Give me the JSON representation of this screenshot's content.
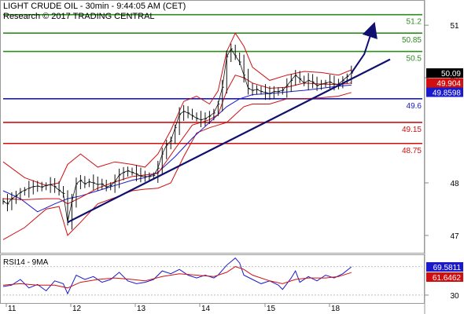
{
  "chart_data": [
    {
      "type": "candlestick",
      "title": "LIGHT CRUDE OIL - 30min - 9:44:05 AM (CET)",
      "subtitle": "Research © 2017 TRADING CENTRAL",
      "x_tick_labels": [
        "11",
        "12",
        "13",
        "14",
        "15",
        "18"
      ],
      "y_tick_labels": [
        51,
        50,
        48,
        47
      ],
      "ylim": [
        46.7,
        51.45
      ],
      "price_levels": [
        {
          "value": 51.2,
          "label": "51.2",
          "color": "#2e8b1e"
        },
        {
          "value": 50.85,
          "label": "50.85",
          "color": "#2e8b1e"
        },
        {
          "value": 50.5,
          "label": "50.5",
          "color": "#2e8b1e"
        },
        {
          "value": 49.6,
          "label": "49.6",
          "color": "#1a1acc"
        },
        {
          "value": 49.15,
          "label": "49.15",
          "color": "#d01010"
        },
        {
          "value": 48.75,
          "label": "48.75",
          "color": "#d01010"
        }
      ],
      "price_badges": [
        {
          "label": "50.09",
          "color": "#000000",
          "value": 50.09
        },
        {
          "label": "49.904",
          "color": "#d01010",
          "value": 49.904
        },
        {
          "label": "49.8598",
          "color": "#1a1acc",
          "value": 49.8598
        }
      ],
      "price_path": [
        [
          0,
          47.65
        ],
        [
          2,
          47.6
        ],
        [
          4,
          47.7
        ],
        [
          6,
          47.75
        ],
        [
          8,
          47.82
        ],
        [
          10,
          47.86
        ],
        [
          12,
          47.9
        ],
        [
          14,
          47.93
        ],
        [
          16,
          47.94
        ],
        [
          18,
          47.92
        ],
        [
          20,
          47.95
        ],
        [
          22,
          47.97
        ],
        [
          24,
          47.93
        ],
        [
          26,
          47.86
        ],
        [
          28,
          47.8
        ],
        [
          30,
          47.25
        ],
        [
          32,
          47.65
        ],
        [
          34,
          47.98
        ],
        [
          36,
          48.05
        ],
        [
          38,
          47.98
        ],
        [
          40,
          48.02
        ],
        [
          42,
          48.0
        ],
        [
          44,
          47.97
        ],
        [
          46,
          47.98
        ],
        [
          48,
          47.92
        ],
        [
          50,
          47.95
        ],
        [
          52,
          48.02
        ],
        [
          54,
          48.15
        ],
        [
          56,
          48.2
        ],
        [
          58,
          48.23
        ],
        [
          60,
          48.2
        ],
        [
          62,
          48.17
        ],
        [
          64,
          48.13
        ],
        [
          66,
          48.12
        ],
        [
          68,
          48.12
        ],
        [
          70,
          48.14
        ],
        [
          72,
          48.28
        ],
        [
          74,
          48.55
        ],
        [
          76,
          48.72
        ],
        [
          78,
          48.8
        ],
        [
          80,
          49.05
        ],
        [
          82,
          49.3
        ],
        [
          84,
          49.36
        ],
        [
          86,
          49.33
        ],
        [
          88,
          49.28
        ],
        [
          90,
          49.23
        ],
        [
          92,
          49.2
        ],
        [
          94,
          49.22
        ],
        [
          96,
          49.27
        ],
        [
          98,
          49.33
        ],
        [
          100,
          49.5
        ],
        [
          102,
          49.82
        ],
        [
          104,
          50.4
        ],
        [
          106,
          50.55
        ],
        [
          108,
          50.42
        ],
        [
          110,
          50.3
        ],
        [
          112,
          50.05
        ],
        [
          114,
          49.8
        ],
        [
          116,
          49.76
        ],
        [
          118,
          49.78
        ],
        [
          120,
          49.74
        ],
        [
          122,
          49.72
        ],
        [
          124,
          49.7
        ],
        [
          126,
          49.74
        ],
        [
          128,
          49.74
        ],
        [
          130,
          49.76
        ],
        [
          132,
          49.85
        ],
        [
          134,
          49.95
        ],
        [
          136,
          50.05
        ],
        [
          138,
          49.98
        ],
        [
          140,
          49.9
        ],
        [
          142,
          49.95
        ],
        [
          144,
          49.92
        ],
        [
          146,
          49.85
        ],
        [
          148,
          49.88
        ],
        [
          150,
          49.9
        ],
        [
          152,
          49.92
        ],
        [
          154,
          49.88
        ],
        [
          156,
          49.88
        ],
        [
          158,
          49.95
        ],
        [
          160,
          50.02
        ],
        [
          162,
          50.09
        ]
      ],
      "bollinger_upper": [
        [
          0,
          48.4
        ],
        [
          10,
          48.1
        ],
        [
          20,
          47.95
        ],
        [
          26,
          48.0
        ],
        [
          30,
          48.35
        ],
        [
          36,
          48.55
        ],
        [
          44,
          48.3
        ],
        [
          52,
          48.4
        ],
        [
          60,
          48.35
        ],
        [
          66,
          48.3
        ],
        [
          72,
          48.55
        ],
        [
          78,
          49.0
        ],
        [
          84,
          49.55
        ],
        [
          90,
          49.65
        ],
        [
          96,
          49.5
        ],
        [
          100,
          49.75
        ],
        [
          104,
          50.5
        ],
        [
          108,
          50.85
        ],
        [
          112,
          50.6
        ],
        [
          116,
          50.2
        ],
        [
          124,
          49.95
        ],
        [
          132,
          50.05
        ],
        [
          140,
          50.12
        ],
        [
          148,
          50.1
        ],
        [
          156,
          50.05
        ],
        [
          162,
          50.15
        ]
      ],
      "bollinger_lower": [
        [
          0,
          46.92
        ],
        [
          10,
          47.15
        ],
        [
          20,
          47.5
        ],
        [
          26,
          47.55
        ],
        [
          30,
          47.0
        ],
        [
          36,
          47.25
        ],
        [
          44,
          47.6
        ],
        [
          52,
          47.72
        ],
        [
          60,
          47.85
        ],
        [
          66,
          47.88
        ],
        [
          72,
          47.9
        ],
        [
          78,
          48.0
        ],
        [
          84,
          48.5
        ],
        [
          90,
          48.95
        ],
        [
          96,
          49.05
        ],
        [
          100,
          49.1
        ],
        [
          104,
          49.15
        ],
        [
          108,
          49.3
        ],
        [
          112,
          49.45
        ],
        [
          116,
          49.5
        ],
        [
          124,
          49.5
        ],
        [
          132,
          49.6
        ],
        [
          140,
          49.6
        ],
        [
          148,
          49.62
        ],
        [
          156,
          49.65
        ],
        [
          162,
          49.72
        ]
      ],
      "moving_average_blue": [
        [
          0,
          47.85
        ],
        [
          8,
          47.7
        ],
        [
          16,
          47.45
        ],
        [
          24,
          47.6
        ],
        [
          30,
          47.7
        ],
        [
          36,
          47.75
        ],
        [
          44,
          47.85
        ],
        [
          52,
          47.95
        ],
        [
          60,
          48.05
        ],
        [
          66,
          48.1
        ],
        [
          72,
          48.2
        ],
        [
          80,
          48.5
        ],
        [
          88,
          48.85
        ],
        [
          96,
          49.15
        ],
        [
          104,
          49.45
        ],
        [
          110,
          49.6
        ],
        [
          116,
          49.68
        ],
        [
          124,
          49.7
        ],
        [
          132,
          49.73
        ],
        [
          140,
          49.76
        ],
        [
          148,
          49.8
        ],
        [
          156,
          49.84
        ],
        [
          162,
          49.86
        ]
      ],
      "moving_average_red": [
        [
          0,
          47.7
        ],
        [
          10,
          47.68
        ],
        [
          20,
          47.7
        ],
        [
          26,
          47.7
        ],
        [
          30,
          47.6
        ],
        [
          36,
          47.72
        ],
        [
          44,
          47.9
        ],
        [
          52,
          48.02
        ],
        [
          60,
          48.12
        ],
        [
          66,
          48.15
        ],
        [
          72,
          48.18
        ],
        [
          80,
          48.65
        ],
        [
          88,
          49.1
        ],
        [
          96,
          49.2
        ],
        [
          100,
          49.3
        ],
        [
          104,
          49.75
        ],
        [
          108,
          50.05
        ],
        [
          112,
          50.0
        ],
        [
          116,
          49.9
        ],
        [
          124,
          49.8
        ],
        [
          132,
          49.82
        ],
        [
          140,
          49.9
        ],
        [
          148,
          49.88
        ],
        [
          156,
          49.87
        ],
        [
          162,
          49.9
        ]
      ],
      "trend_line": {
        "from": [
          30,
          47.25
        ],
        "to": [
          180,
          50.35
        ]
      },
      "projection_arrow": {
        "points": [
          [
            162,
            50.09
          ],
          [
            168,
            50.45
          ],
          [
            172,
            50.95
          ]
        ]
      }
    },
    {
      "type": "line",
      "title": "RSI14 - 9MA",
      "y_tick_labels": [
        30
      ],
      "ylim": [
        20,
        85
      ],
      "badges": [
        {
          "label": "69.5811",
          "color": "#1a1acc",
          "value": 69.5811
        },
        {
          "label": "61.6462",
          "color": "#d01010",
          "value": 61.6462
        }
      ],
      "rsi": [
        [
          0,
          42
        ],
        [
          4,
          44
        ],
        [
          8,
          52
        ],
        [
          12,
          40
        ],
        [
          16,
          45
        ],
        [
          20,
          36
        ],
        [
          24,
          50
        ],
        [
          28,
          46
        ],
        [
          30,
          32
        ],
        [
          34,
          58
        ],
        [
          38,
          52
        ],
        [
          42,
          56
        ],
        [
          46,
          48
        ],
        [
          50,
          52
        ],
        [
          54,
          62
        ],
        [
          58,
          50
        ],
        [
          62,
          46
        ],
        [
          66,
          48
        ],
        [
          70,
          52
        ],
        [
          74,
          64
        ],
        [
          78,
          60
        ],
        [
          82,
          66
        ],
        [
          86,
          58
        ],
        [
          90,
          54
        ],
        [
          94,
          58
        ],
        [
          98,
          54
        ],
        [
          100,
          58
        ],
        [
          104,
          72
        ],
        [
          108,
          82
        ],
        [
          110,
          75
        ],
        [
          112,
          58
        ],
        [
          116,
          52
        ],
        [
          120,
          46
        ],
        [
          124,
          50
        ],
        [
          128,
          44
        ],
        [
          130,
          38
        ],
        [
          134,
          54
        ],
        [
          136,
          64
        ],
        [
          138,
          48
        ],
        [
          142,
          56
        ],
        [
          146,
          50
        ],
        [
          150,
          58
        ],
        [
          154,
          54
        ],
        [
          158,
          60
        ],
        [
          162,
          69.58
        ]
      ],
      "rsi_ma": [
        [
          0,
          44
        ],
        [
          8,
          46
        ],
        [
          16,
          44
        ],
        [
          24,
          44
        ],
        [
          30,
          40
        ],
        [
          36,
          48
        ],
        [
          44,
          52
        ],
        [
          52,
          54
        ],
        [
          60,
          52
        ],
        [
          66,
          50
        ],
        [
          74,
          56
        ],
        [
          82,
          60
        ],
        [
          90,
          58
        ],
        [
          98,
          56
        ],
        [
          104,
          62
        ],
        [
          108,
          70
        ],
        [
          112,
          66
        ],
        [
          116,
          58
        ],
        [
          124,
          50
        ],
        [
          130,
          46
        ],
        [
          136,
          52
        ],
        [
          142,
          54
        ],
        [
          150,
          54
        ],
        [
          156,
          56
        ],
        [
          162,
          61.65
        ]
      ]
    }
  ]
}
